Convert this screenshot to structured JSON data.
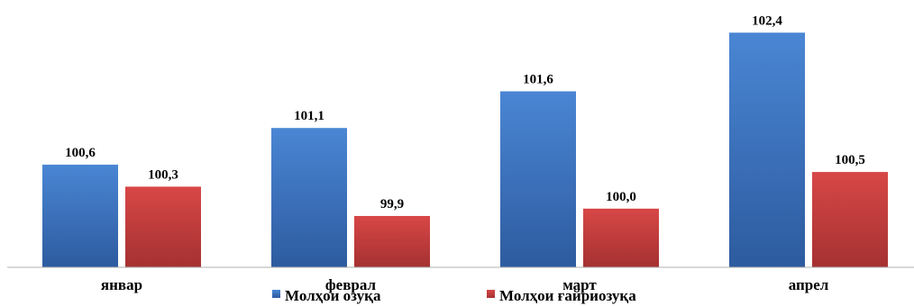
{
  "chart_data": {
    "type": "bar",
    "categories": [
      "январ",
      "феврал",
      "март",
      "апрел"
    ],
    "series": [
      {
        "name": "Молҳои озуқа",
        "color": "#3f77c6",
        "values": [
          100.6,
          101.1,
          101.6,
          102.4
        ],
        "labels": [
          "100,6",
          "101,1",
          "101,6",
          "102,4"
        ]
      },
      {
        "name": "Молҳои ғайриозуқа",
        "color": "#d04040",
        "values": [
          100.3,
          99.9,
          100.0,
          100.5
        ],
        "labels": [
          "100,3",
          "99,9",
          "100,0",
          "100,5"
        ]
      }
    ],
    "title": "",
    "xlabel": "",
    "ylabel": "",
    "ylim": [
      99.2,
      102.6
    ],
    "grid": false,
    "legend_position": "bottom"
  }
}
